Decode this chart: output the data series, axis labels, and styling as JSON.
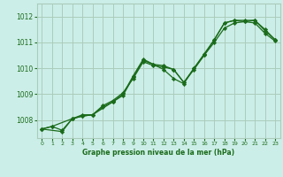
{
  "title": "Graphe pression niveau de la mer (hPa)",
  "bg_color": "#cceee8",
  "grid_color": "#aaccbb",
  "line_color": "#1a6b1a",
  "marker_color": "#1a6b1a",
  "xlim": [
    -0.5,
    23.5
  ],
  "ylim": [
    1007.3,
    1012.5
  ],
  "yticks": [
    1008,
    1009,
    1010,
    1011,
    1012
  ],
  "xticks": [
    0,
    1,
    2,
    3,
    4,
    5,
    6,
    7,
    8,
    9,
    10,
    11,
    12,
    13,
    14,
    15,
    16,
    17,
    18,
    19,
    20,
    21,
    22,
    23
  ],
  "series1": [
    [
      0,
      1007.65
    ],
    [
      1,
      1007.75
    ],
    [
      2,
      1007.6
    ],
    [
      3,
      1008.05
    ],
    [
      4,
      1008.15
    ],
    [
      5,
      1008.2
    ],
    [
      6,
      1008.55
    ],
    [
      7,
      1008.75
    ],
    [
      8,
      1009.05
    ],
    [
      9,
      1009.6
    ],
    [
      10,
      1010.25
    ],
    [
      11,
      1010.1
    ],
    [
      12,
      1010.05
    ],
    [
      13,
      1009.95
    ],
    [
      14,
      1009.45
    ],
    [
      15,
      1009.95
    ],
    [
      16,
      1010.5
    ],
    [
      17,
      1011.0
    ],
    [
      18,
      1011.55
    ],
    [
      19,
      1011.75
    ],
    [
      20,
      1011.8
    ],
    [
      21,
      1011.75
    ],
    [
      22,
      1011.35
    ],
    [
      23,
      1011.05
    ]
  ],
  "series2": [
    [
      0,
      1007.65
    ],
    [
      1,
      1007.75
    ],
    [
      3,
      1008.05
    ],
    [
      4,
      1008.15
    ],
    [
      5,
      1008.2
    ],
    [
      7,
      1008.7
    ],
    [
      8,
      1008.95
    ],
    [
      9,
      1009.65
    ],
    [
      10,
      1010.3
    ],
    [
      11,
      1010.15
    ],
    [
      12,
      1009.95
    ],
    [
      13,
      1009.6
    ],
    [
      14,
      1009.4
    ],
    [
      15,
      1010.0
    ],
    [
      16,
      1010.5
    ],
    [
      17,
      1011.1
    ],
    [
      18,
      1011.75
    ],
    [
      19,
      1011.85
    ],
    [
      20,
      1011.8
    ],
    [
      21,
      1011.85
    ],
    [
      22,
      1011.45
    ],
    [
      23,
      1011.1
    ]
  ],
  "series3": [
    [
      0,
      1007.65
    ],
    [
      2,
      1007.55
    ],
    [
      3,
      1008.05
    ],
    [
      4,
      1008.2
    ],
    [
      5,
      1008.2
    ],
    [
      6,
      1008.5
    ],
    [
      7,
      1008.7
    ],
    [
      8,
      1009.0
    ],
    [
      9,
      1009.7
    ],
    [
      10,
      1010.35
    ],
    [
      11,
      1010.15
    ],
    [
      12,
      1010.1
    ],
    [
      13,
      1009.95
    ],
    [
      14,
      1009.45
    ],
    [
      15,
      1010.0
    ],
    [
      16,
      1010.55
    ],
    [
      17,
      1011.1
    ],
    [
      18,
      1011.75
    ],
    [
      19,
      1011.85
    ],
    [
      20,
      1011.85
    ],
    [
      21,
      1011.85
    ],
    [
      22,
      1011.5
    ],
    [
      23,
      1011.1
    ]
  ]
}
